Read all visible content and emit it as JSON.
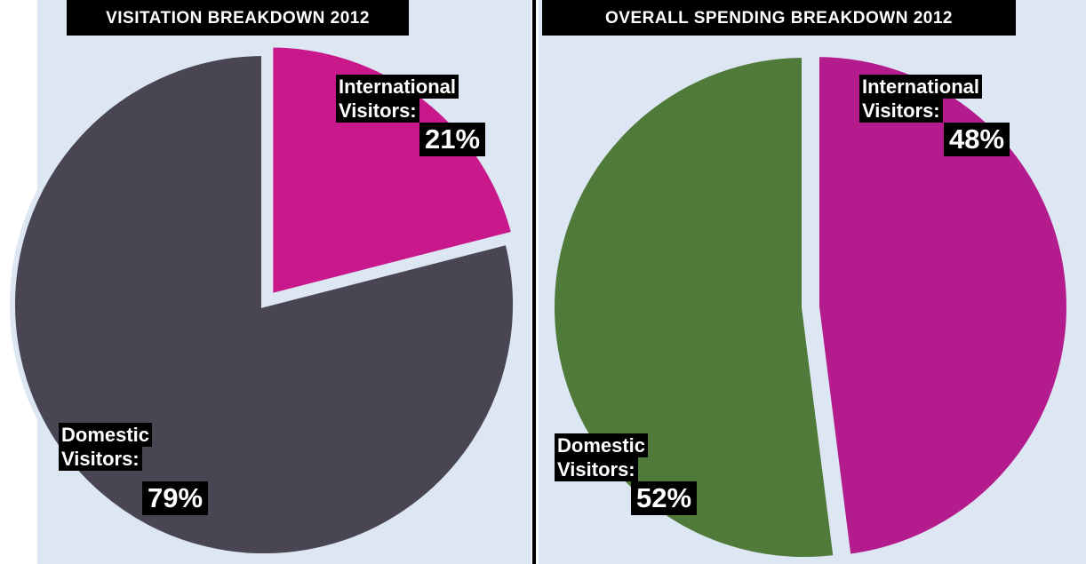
{
  "chart_data": [
    {
      "type": "pie",
      "title": "VISITATION BREAKDOWN 2012",
      "categories": [
        "Domestic Visitors:",
        "International Visitors:"
      ],
      "values": [
        79,
        21
      ],
      "value_labels": [
        "79%",
        "21%"
      ],
      "colors": [
        "#4a4552",
        "#c8188c"
      ]
    },
    {
      "type": "pie",
      "title": "OVERALL SPENDING BREAKDOWN 2012",
      "categories": [
        "Domestic Visitors:",
        "International Visitors:"
      ],
      "values": [
        52,
        48
      ],
      "value_labels": [
        "52%",
        "48%"
      ],
      "colors": [
        "#4f7a3a",
        "#b41c8e"
      ]
    }
  ]
}
